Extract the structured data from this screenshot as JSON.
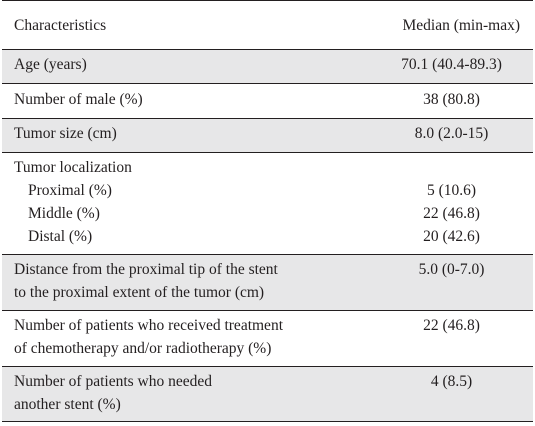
{
  "header": {
    "col1": "Characteristics",
    "col2": "Median (min-max)"
  },
  "rows": [
    {
      "label": "Age (years)",
      "value": "70.1 (40.4-89.3)"
    },
    {
      "label": "Number of male (%)",
      "value": "38 (80.8)"
    },
    {
      "label": "Tumor size (cm)",
      "value": "8.0 (2.0-15)"
    },
    {
      "label": "Tumor localization",
      "subrows": [
        {
          "label": "Proximal (%)",
          "value": "5 (10.6)"
        },
        {
          "label": "Middle (%)",
          "value": "22 (46.8)"
        },
        {
          "label": "Distal (%)",
          "value": "20 (42.6)"
        }
      ]
    },
    {
      "label_lines": [
        "Distance from the proximal tip of the stent",
        "to the proximal extent of the tumor (cm)"
      ],
      "value": "5.0 (0-7.0)"
    },
    {
      "label_lines": [
        "Number of patients who received treatment",
        "of chemotherapy and/or radiotherapy (%)"
      ],
      "value": "22 (46.8)"
    },
    {
      "label_lines": [
        "Number of patients who needed",
        "another stent (%)"
      ],
      "value": "4 (8.5)"
    }
  ]
}
